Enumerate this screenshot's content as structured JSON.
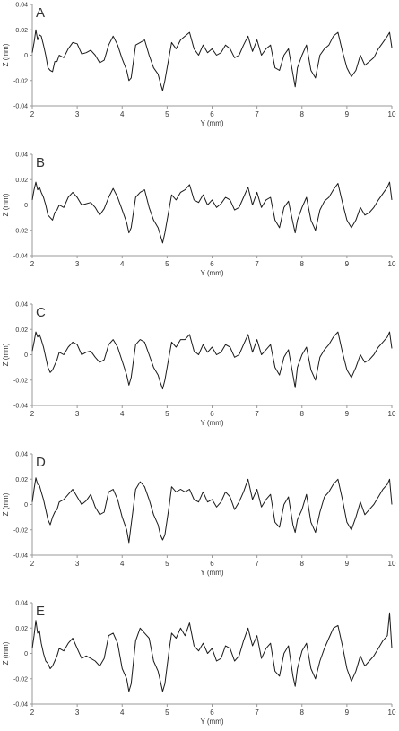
{
  "chart_data": [
    {
      "type": "line",
      "panel_label": "A",
      "xlabel": "Y (mm)",
      "ylabel": "Z (mm)",
      "xlim": [
        2,
        10
      ],
      "ylim": [
        -0.04,
        0.04
      ],
      "xticks": [
        2,
        3,
        4,
        5,
        6,
        7,
        8,
        9,
        10
      ],
      "yticks": [
        0.04,
        0.02,
        0,
        -0.02,
        -0.04
      ],
      "ytick_labels": [
        "0.04",
        "0.02",
        "0",
        "-0.02",
        "-0.04"
      ],
      "grid": false,
      "line_color": "#1a1a1a",
      "x": [
        2.0,
        2.04,
        2.08,
        2.12,
        2.16,
        2.2,
        2.25,
        2.3,
        2.35,
        2.4,
        2.45,
        2.5,
        2.55,
        2.6,
        2.7,
        2.8,
        2.9,
        3.0,
        3.1,
        3.2,
        3.3,
        3.4,
        3.5,
        3.6,
        3.7,
        3.8,
        3.9,
        4.0,
        4.1,
        4.15,
        4.2,
        4.3,
        4.4,
        4.5,
        4.6,
        4.7,
        4.8,
        4.85,
        4.9,
        4.95,
        5.0,
        5.05,
        5.1,
        5.2,
        5.3,
        5.4,
        5.5,
        5.6,
        5.7,
        5.8,
        5.9,
        6.0,
        6.1,
        6.2,
        6.3,
        6.4,
        6.5,
        6.6,
        6.7,
        6.8,
        6.9,
        7.0,
        7.1,
        7.2,
        7.3,
        7.4,
        7.5,
        7.6,
        7.7,
        7.8,
        7.85,
        7.9,
        8.0,
        8.1,
        8.2,
        8.3,
        8.4,
        8.5,
        8.6,
        8.7,
        8.8,
        8.9,
        9.0,
        9.1,
        9.2,
        9.3,
        9.4,
        9.5,
        9.6,
        9.7,
        9.8,
        9.9,
        9.95,
        10.0
      ],
      "y": [
        0.002,
        0.01,
        0.02,
        0.012,
        0.016,
        0.015,
        0.008,
        0.0,
        -0.01,
        -0.012,
        -0.013,
        -0.005,
        -0.005,
        0.0,
        -0.002,
        0.005,
        0.01,
        0.009,
        0.001,
        0.002,
        0.004,
        0.0,
        -0.006,
        -0.004,
        0.008,
        0.015,
        0.008,
        -0.003,
        -0.012,
        -0.02,
        -0.018,
        0.008,
        0.01,
        0.012,
        0.0,
        -0.01,
        -0.015,
        -0.022,
        -0.028,
        -0.02,
        -0.01,
        0.0,
        0.01,
        0.005,
        0.012,
        0.015,
        0.018,
        0.005,
        0.0,
        0.008,
        0.002,
        0.005,
        0.0,
        0.002,
        0.008,
        0.005,
        -0.002,
        0.0,
        0.008,
        0.015,
        0.003,
        0.012,
        0.0,
        0.005,
        0.008,
        -0.01,
        -0.012,
        0.0,
        0.005,
        -0.015,
        -0.025,
        -0.01,
        0.0,
        0.008,
        -0.012,
        -0.018,
        0.0,
        0.005,
        0.008,
        0.015,
        0.018,
        0.003,
        -0.01,
        -0.017,
        -0.012,
        0.0,
        -0.008,
        -0.005,
        -0.002,
        0.005,
        0.01,
        0.015,
        0.018,
        0.006
      ]
    },
    {
      "type": "line",
      "panel_label": "B",
      "xlabel": "Y (mm)",
      "ylabel": "Z (mm)",
      "xlim": [
        2,
        10
      ],
      "ylim": [
        -0.04,
        0.04
      ],
      "xticks": [
        2,
        3,
        4,
        5,
        6,
        7,
        8,
        9,
        10
      ],
      "yticks": [
        0.04,
        0.02,
        0,
        -0.02,
        -0.04
      ],
      "ytick_labels": [
        "0.04",
        "0.02",
        "0",
        "-0.02",
        "-0.04"
      ],
      "grid": false,
      "line_color": "#1a1a1a",
      "x": [
        2.0,
        2.04,
        2.08,
        2.12,
        2.16,
        2.2,
        2.25,
        2.3,
        2.35,
        2.4,
        2.45,
        2.5,
        2.55,
        2.6,
        2.7,
        2.8,
        2.9,
        3.0,
        3.1,
        3.2,
        3.3,
        3.4,
        3.5,
        3.6,
        3.7,
        3.8,
        3.9,
        4.0,
        4.1,
        4.15,
        4.2,
        4.3,
        4.4,
        4.5,
        4.6,
        4.7,
        4.8,
        4.85,
        4.9,
        4.95,
        5.0,
        5.05,
        5.1,
        5.2,
        5.3,
        5.4,
        5.5,
        5.6,
        5.7,
        5.8,
        5.9,
        6.0,
        6.1,
        6.2,
        6.3,
        6.4,
        6.5,
        6.6,
        6.7,
        6.8,
        6.9,
        7.0,
        7.1,
        7.2,
        7.3,
        7.4,
        7.5,
        7.6,
        7.7,
        7.8,
        7.85,
        7.9,
        8.0,
        8.1,
        8.2,
        8.3,
        8.4,
        8.5,
        8.6,
        8.7,
        8.8,
        8.9,
        9.0,
        9.1,
        9.2,
        9.3,
        9.4,
        9.5,
        9.6,
        9.7,
        9.8,
        9.9,
        9.95,
        10.0
      ],
      "y": [
        0.004,
        0.012,
        0.018,
        0.012,
        0.014,
        0.01,
        0.006,
        0.0,
        -0.008,
        -0.01,
        -0.012,
        -0.006,
        -0.004,
        0.0,
        -0.002,
        0.006,
        0.01,
        0.006,
        0.0,
        0.001,
        0.002,
        -0.002,
        -0.008,
        -0.003,
        0.006,
        0.013,
        0.006,
        -0.004,
        -0.014,
        -0.022,
        -0.018,
        0.006,
        0.01,
        0.012,
        -0.002,
        -0.012,
        -0.018,
        -0.024,
        -0.03,
        -0.022,
        -0.012,
        -0.002,
        0.008,
        0.004,
        0.01,
        0.012,
        0.016,
        0.004,
        0.002,
        0.008,
        0.0,
        0.004,
        -0.002,
        0.001,
        0.006,
        0.004,
        -0.004,
        -0.002,
        0.006,
        0.014,
        0.0,
        0.01,
        -0.002,
        0.004,
        0.006,
        -0.012,
        -0.018,
        -0.002,
        0.003,
        -0.014,
        -0.022,
        -0.012,
        -0.002,
        0.006,
        -0.012,
        -0.02,
        -0.004,
        0.003,
        0.006,
        0.012,
        0.017,
        0.002,
        -0.012,
        -0.018,
        -0.012,
        -0.002,
        -0.008,
        -0.006,
        -0.002,
        0.004,
        0.009,
        0.014,
        0.018,
        0.004
      ]
    },
    {
      "type": "line",
      "panel_label": "C",
      "xlabel": "Y (mm)",
      "ylabel": "Z (mm)",
      "xlim": [
        2,
        10
      ],
      "ylim": [
        -0.04,
        0.04
      ],
      "xticks": [
        2,
        3,
        4,
        5,
        6,
        7,
        8,
        9,
        10
      ],
      "yticks": [
        0.04,
        0.02,
        0,
        -0.02,
        -0.04
      ],
      "ytick_labels": [
        "0.04",
        "0.02",
        "0",
        "-0.02",
        "-0.04"
      ],
      "grid": false,
      "line_color": "#1a1a1a",
      "x": [
        2.0,
        2.04,
        2.08,
        2.12,
        2.16,
        2.2,
        2.25,
        2.3,
        2.35,
        2.4,
        2.45,
        2.5,
        2.55,
        2.6,
        2.7,
        2.8,
        2.9,
        3.0,
        3.1,
        3.2,
        3.3,
        3.4,
        3.5,
        3.6,
        3.7,
        3.8,
        3.9,
        4.0,
        4.1,
        4.15,
        4.2,
        4.3,
        4.4,
        4.5,
        4.6,
        4.7,
        4.8,
        4.85,
        4.9,
        4.95,
        5.0,
        5.05,
        5.1,
        5.2,
        5.3,
        5.4,
        5.5,
        5.6,
        5.7,
        5.8,
        5.9,
        6.0,
        6.1,
        6.2,
        6.3,
        6.4,
        6.5,
        6.6,
        6.7,
        6.8,
        6.9,
        7.0,
        7.1,
        7.2,
        7.3,
        7.4,
        7.5,
        7.6,
        7.7,
        7.8,
        7.85,
        7.9,
        8.0,
        8.1,
        8.2,
        8.3,
        8.4,
        8.5,
        8.6,
        8.7,
        8.8,
        8.9,
        9.0,
        9.1,
        9.2,
        9.3,
        9.4,
        9.5,
        9.6,
        9.7,
        9.8,
        9.9,
        9.95,
        10.0
      ],
      "y": [
        0.003,
        0.01,
        0.018,
        0.014,
        0.016,
        0.012,
        0.006,
        -0.002,
        -0.01,
        -0.014,
        -0.012,
        -0.008,
        -0.004,
        0.002,
        0.0,
        0.006,
        0.01,
        0.008,
        0.0,
        0.002,
        0.003,
        -0.002,
        -0.006,
        -0.004,
        0.008,
        0.012,
        0.006,
        -0.005,
        -0.016,
        -0.024,
        -0.018,
        0.008,
        0.012,
        0.01,
        0.0,
        -0.01,
        -0.016,
        -0.022,
        -0.027,
        -0.02,
        -0.01,
        0.0,
        0.01,
        0.006,
        0.012,
        0.012,
        0.016,
        0.003,
        0.0,
        0.008,
        0.002,
        0.006,
        0.0,
        0.002,
        0.008,
        0.006,
        -0.002,
        0.0,
        0.008,
        0.016,
        0.002,
        0.012,
        0.0,
        0.004,
        0.008,
        -0.01,
        -0.016,
        -0.002,
        0.004,
        -0.016,
        -0.026,
        -0.01,
        0.0,
        0.006,
        -0.012,
        -0.02,
        -0.002,
        0.004,
        0.008,
        0.014,
        0.018,
        0.002,
        -0.012,
        -0.018,
        -0.01,
        0.0,
        -0.006,
        -0.004,
        0.0,
        0.006,
        0.01,
        0.014,
        0.018,
        0.005
      ]
    },
    {
      "type": "line",
      "panel_label": "D",
      "xlabel": "Y (mm)",
      "ylabel": "Z (mm)",
      "xlim": [
        2,
        10
      ],
      "ylim": [
        -0.04,
        0.04
      ],
      "xticks": [
        2,
        3,
        4,
        5,
        6,
        7,
        8,
        9,
        10
      ],
      "yticks": [
        0.04,
        0.02,
        0,
        -0.02,
        -0.04
      ],
      "ytick_labels": [
        "0.04",
        "0.02",
        "0",
        "-0.02",
        "-0.04"
      ],
      "grid": false,
      "line_color": "#1a1a1a",
      "x": [
        2.0,
        2.04,
        2.08,
        2.12,
        2.16,
        2.2,
        2.25,
        2.3,
        2.35,
        2.4,
        2.45,
        2.5,
        2.55,
        2.6,
        2.7,
        2.8,
        2.9,
        3.0,
        3.1,
        3.2,
        3.3,
        3.4,
        3.5,
        3.6,
        3.7,
        3.8,
        3.9,
        4.0,
        4.1,
        4.15,
        4.2,
        4.3,
        4.4,
        4.5,
        4.6,
        4.7,
        4.8,
        4.85,
        4.9,
        4.95,
        5.0,
        5.05,
        5.1,
        5.2,
        5.3,
        5.4,
        5.5,
        5.6,
        5.7,
        5.8,
        5.9,
        6.0,
        6.1,
        6.2,
        6.3,
        6.4,
        6.5,
        6.6,
        6.7,
        6.8,
        6.9,
        7.0,
        7.1,
        7.2,
        7.3,
        7.4,
        7.5,
        7.6,
        7.7,
        7.8,
        7.85,
        7.9,
        8.0,
        8.1,
        8.2,
        8.3,
        8.4,
        8.5,
        8.6,
        8.7,
        8.8,
        8.9,
        9.0,
        9.1,
        9.2,
        9.3,
        9.4,
        9.5,
        9.6,
        9.7,
        9.8,
        9.9,
        9.95,
        10.0
      ],
      "y": [
        0.002,
        0.012,
        0.021,
        0.016,
        0.015,
        0.01,
        0.004,
        -0.004,
        -0.012,
        -0.016,
        -0.01,
        -0.006,
        -0.004,
        0.002,
        0.004,
        0.008,
        0.012,
        0.006,
        0.0,
        0.003,
        0.008,
        -0.002,
        -0.008,
        -0.006,
        0.01,
        0.012,
        0.004,
        -0.01,
        -0.02,
        -0.03,
        -0.016,
        0.012,
        0.018,
        0.014,
        0.004,
        -0.008,
        -0.016,
        -0.024,
        -0.028,
        -0.024,
        -0.012,
        0.0,
        0.014,
        0.01,
        0.012,
        0.01,
        0.012,
        0.004,
        0.002,
        0.01,
        0.002,
        0.004,
        -0.002,
        0.002,
        0.01,
        0.006,
        -0.004,
        0.002,
        0.01,
        0.02,
        0.004,
        0.012,
        -0.002,
        0.004,
        0.008,
        -0.014,
        -0.018,
        0.0,
        0.006,
        -0.016,
        -0.022,
        -0.012,
        -0.004,
        0.008,
        -0.014,
        -0.022,
        -0.006,
        0.006,
        0.01,
        0.016,
        0.02,
        0.004,
        -0.014,
        -0.02,
        -0.01,
        0.002,
        -0.008,
        -0.004,
        0.0,
        0.006,
        0.012,
        0.016,
        0.02,
        0.0
      ]
    },
    {
      "type": "line",
      "panel_label": "E",
      "xlabel": "Y (mm)",
      "ylabel": "Z (mm)",
      "xlim": [
        2,
        10
      ],
      "ylim": [
        -0.04,
        0.04
      ],
      "xticks": [
        2,
        3,
        4,
        5,
        6,
        7,
        8,
        9,
        10
      ],
      "yticks": [
        0.04,
        0.02,
        0,
        -0.02,
        -0.04
      ],
      "ytick_labels": [
        "0.04",
        "0.02",
        "0",
        "-0.02",
        "-0.04"
      ],
      "grid": false,
      "line_color": "#1a1a1a",
      "x": [
        2.0,
        2.04,
        2.08,
        2.12,
        2.16,
        2.2,
        2.25,
        2.3,
        2.35,
        2.4,
        2.45,
        2.5,
        2.55,
        2.6,
        2.7,
        2.8,
        2.9,
        3.0,
        3.1,
        3.2,
        3.3,
        3.4,
        3.5,
        3.6,
        3.7,
        3.8,
        3.9,
        4.0,
        4.1,
        4.15,
        4.2,
        4.3,
        4.4,
        4.5,
        4.6,
        4.7,
        4.8,
        4.85,
        4.9,
        4.95,
        5.0,
        5.05,
        5.1,
        5.2,
        5.3,
        5.4,
        5.5,
        5.6,
        5.7,
        5.8,
        5.9,
        6.0,
        6.1,
        6.2,
        6.3,
        6.4,
        6.5,
        6.6,
        6.7,
        6.8,
        6.9,
        7.0,
        7.1,
        7.2,
        7.3,
        7.4,
        7.5,
        7.6,
        7.7,
        7.8,
        7.85,
        7.9,
        8.0,
        8.1,
        8.2,
        8.3,
        8.4,
        8.5,
        8.6,
        8.7,
        8.8,
        8.9,
        9.0,
        9.1,
        9.2,
        9.3,
        9.4,
        9.5,
        9.6,
        9.7,
        9.8,
        9.9,
        9.95,
        10.0
      ],
      "y": [
        0.004,
        0.014,
        0.026,
        0.016,
        0.018,
        0.008,
        0.0,
        -0.006,
        -0.008,
        -0.012,
        -0.01,
        -0.006,
        -0.002,
        0.004,
        0.002,
        0.008,
        0.012,
        0.004,
        -0.004,
        -0.002,
        -0.004,
        -0.006,
        -0.01,
        -0.004,
        0.014,
        0.016,
        0.008,
        -0.012,
        -0.02,
        -0.03,
        -0.024,
        0.01,
        0.02,
        0.016,
        0.012,
        -0.006,
        -0.014,
        -0.022,
        -0.03,
        -0.024,
        -0.01,
        0.004,
        0.016,
        0.012,
        0.02,
        0.014,
        0.024,
        0.006,
        0.002,
        0.008,
        0.0,
        0.004,
        -0.006,
        -0.004,
        0.006,
        0.004,
        -0.006,
        -0.002,
        0.01,
        0.02,
        0.006,
        0.014,
        -0.004,
        0.004,
        0.008,
        -0.014,
        -0.018,
        0.0,
        0.006,
        -0.018,
        -0.026,
        -0.012,
        0.002,
        0.008,
        -0.012,
        -0.02,
        -0.006,
        0.004,
        0.012,
        0.02,
        0.022,
        0.006,
        -0.012,
        -0.022,
        -0.014,
        -0.002,
        -0.01,
        -0.006,
        -0.002,
        0.004,
        0.01,
        0.014,
        0.032,
        0.004
      ]
    }
  ]
}
